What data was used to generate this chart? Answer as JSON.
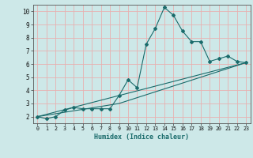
{
  "xlabel": "Humidex (Indice chaleur)",
  "bg_color": "#cde8e8",
  "grid_color": "#e8b0b0",
  "line_color": "#1a6b6b",
  "xlim": [
    -0.5,
    23.5
  ],
  "ylim": [
    1.5,
    10.5
  ],
  "xticks": [
    0,
    1,
    2,
    3,
    4,
    5,
    6,
    7,
    8,
    9,
    10,
    11,
    12,
    13,
    14,
    15,
    16,
    17,
    18,
    19,
    20,
    21,
    22,
    23
  ],
  "yticks": [
    2,
    3,
    4,
    5,
    6,
    7,
    8,
    9,
    10
  ],
  "curve_x": [
    0,
    1,
    2,
    3,
    4,
    5,
    6,
    7,
    8,
    9,
    10,
    11,
    12,
    13,
    14,
    15,
    16,
    17,
    18,
    19,
    20,
    21,
    22,
    23
  ],
  "curve_y": [
    2.0,
    1.85,
    2.0,
    2.5,
    2.7,
    2.6,
    2.6,
    2.6,
    2.6,
    3.6,
    4.8,
    4.2,
    7.5,
    8.7,
    10.3,
    9.7,
    8.5,
    7.7,
    7.7,
    6.2,
    6.4,
    6.6,
    6.2,
    6.1
  ],
  "line1_x": [
    0,
    23
  ],
  "line1_y": [
    2.0,
    6.1
  ],
  "line2_x": [
    0,
    9,
    23
  ],
  "line2_y": [
    2.0,
    3.0,
    6.1
  ]
}
